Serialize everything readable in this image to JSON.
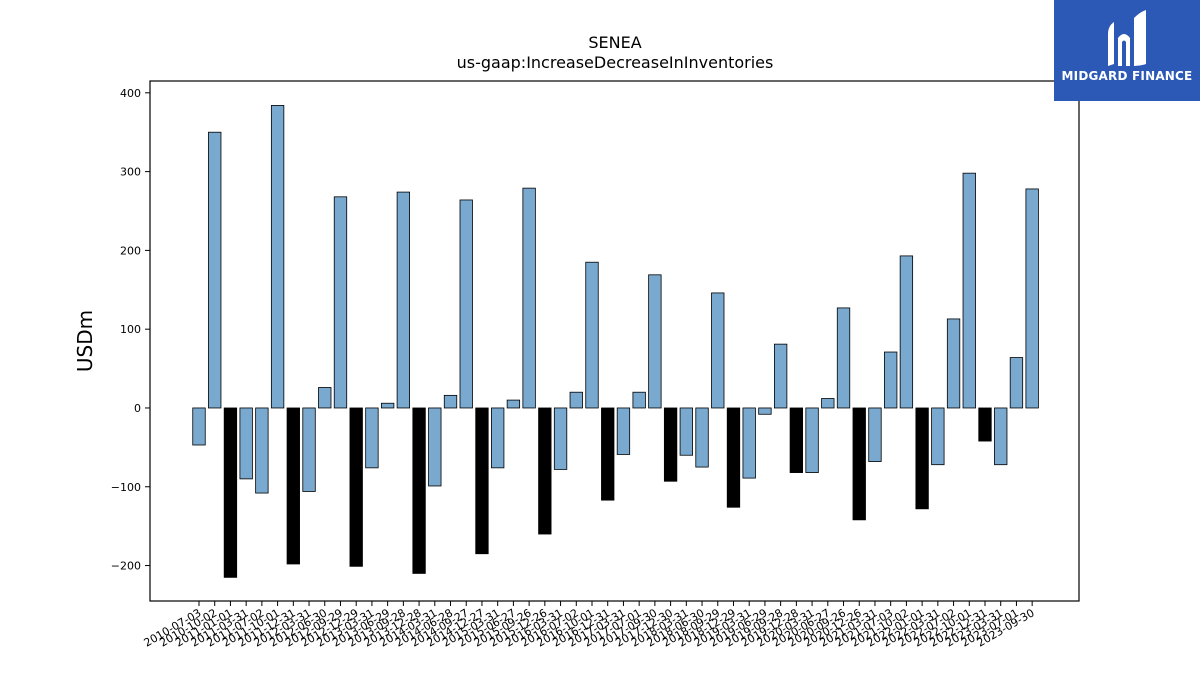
{
  "brand": {
    "name": "MIDGARD FINANCE",
    "bg_color": "#2b59b5",
    "icon": "midgard-logo-icon"
  },
  "chart_data": {
    "type": "bar",
    "title": "SENEA",
    "subtitle": "us-gaap:IncreaseDecreaseInInventories",
    "xlabel": "",
    "ylabel": "USDm",
    "ylim": [
      -245,
      415
    ],
    "yticks": [
      -200,
      -100,
      0,
      100,
      200,
      300,
      400
    ],
    "grid": false,
    "legend": "none",
    "colors": {
      "default": "#7aa9d0",
      "highlight": "#000000",
      "edge": "#000000"
    },
    "categories": [
      "2010-07-03",
      "2010-10-02",
      "2011-01-01",
      "2011-03-31",
      "2011-07-02",
      "2011-10-01",
      "2011-12-31",
      "2012-03-31",
      "2012-06-30",
      "2012-09-29",
      "2012-12-29",
      "2013-03-31",
      "2013-06-29",
      "2013-09-28",
      "2013-12-28",
      "2014-03-31",
      "2014-06-28",
      "2014-09-27",
      "2014-12-27",
      "2015-03-31",
      "2015-06-27",
      "2015-09-26",
      "2015-12-26",
      "2016-03-31",
      "2016-07-02",
      "2016-10-01",
      "2016-12-31",
      "2017-03-31",
      "2017-07-01",
      "2017-09-30",
      "2017-12-30",
      "2018-03-31",
      "2018-06-30",
      "2018-09-29",
      "2018-12-29",
      "2019-03-31",
      "2019-06-29",
      "2019-09-28",
      "2019-12-28",
      "2020-03-31",
      "2020-06-27",
      "2020-09-26",
      "2020-12-26",
      "2021-03-31",
      "2021-07-03",
      "2021-10-02",
      "2022-01-01",
      "2022-03-31",
      "2022-07-02",
      "2022-10-01",
      "2022-12-31",
      "2023-03-31",
      "2023-07-01",
      "2023-09-30"
    ],
    "values": [
      -47,
      350,
      -215,
      -90,
      -108,
      384,
      -198,
      -106,
      26,
      268,
      -201,
      -76,
      6,
      274,
      -210,
      -99,
      16,
      264,
      -185,
      -76,
      10,
      279,
      -160,
      -78,
      20,
      185,
      -117,
      -59,
      20,
      169,
      -93,
      -60,
      -75,
      146,
      -126,
      -89,
      -8,
      81,
      -82,
      -82,
      12,
      127,
      -142,
      -68,
      71,
      193,
      -128,
      -72,
      113,
      298,
      -42,
      -72,
      64,
      278
    ],
    "highlighted_indices": [
      2,
      6,
      10,
      14,
      18,
      22,
      26,
      30,
      34,
      38,
      42,
      46,
      50
    ]
  }
}
